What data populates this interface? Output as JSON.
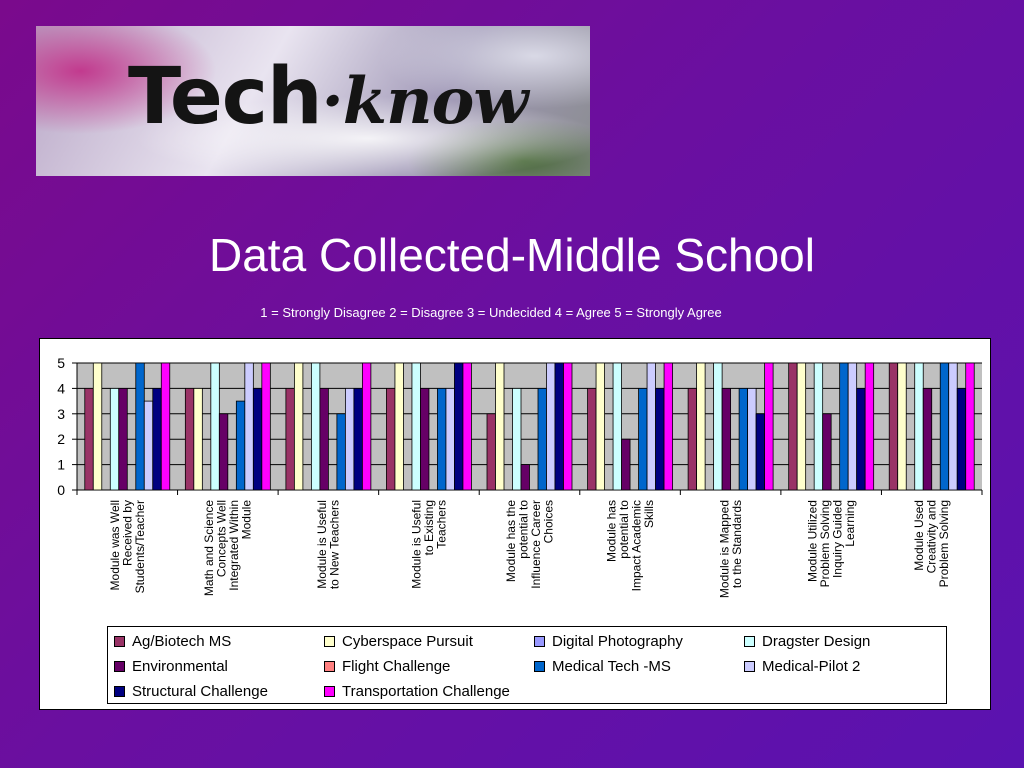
{
  "logo": {
    "text_part1": "Tech",
    "text_part2": "know"
  },
  "title": "Data Collected-Middle School",
  "scale_note": "1 = Strongly Disagree  2 = Disagree  3 = Undecided  4 = Agree  5 = Strongly Agree",
  "chart_data": {
    "type": "bar",
    "title": "",
    "xlabel": "",
    "ylabel": "",
    "ylim": [
      0,
      5
    ],
    "yticks": [
      "0",
      "1",
      "2",
      "3",
      "4",
      "5"
    ],
    "grid": true,
    "legend_position": "bottom",
    "categories": [
      [
        "Module was Well",
        "Received by",
        "Students/Teacher"
      ],
      [
        "Math and Science",
        "Concepts Well",
        "Integrated Within",
        "Module"
      ],
      [
        "Module is Useful",
        "to New Teachers"
      ],
      [
        "Module is Useful",
        "to Existing",
        "Teachers"
      ],
      [
        "Module has the",
        "potential to",
        "Influence Career",
        "Choices"
      ],
      [
        "Module has",
        "potential to",
        "Impact Academic",
        "Skills"
      ],
      [
        "Module is Mapped",
        "to the Standards"
      ],
      [
        "Module Utilized",
        "Problem Solving",
        "Inquiry Guided",
        "Learning"
      ],
      [
        "Module Used",
        "Creativity and",
        "Problem Solving"
      ]
    ],
    "series": [
      {
        "name": "Ag/Biotech MS",
        "color": "#993366",
        "values": [
          4,
          4,
          4,
          4,
          3,
          4,
          4,
          5,
          5
        ]
      },
      {
        "name": "Cyberspace Pursuit",
        "color": "#FFFFCC",
        "values": [
          5,
          4,
          5,
          5,
          5,
          5,
          5,
          5,
          5
        ]
      },
      {
        "name": "Digital Photography",
        "color": "#9999FF",
        "values": [
          0,
          0,
          0,
          0,
          0,
          0,
          0,
          0,
          0
        ]
      },
      {
        "name": "Dragster Design",
        "color": "#CCFFFF",
        "values": [
          4,
          5,
          5,
          5,
          4,
          5,
          5,
          5,
          5
        ]
      },
      {
        "name": "Environmental",
        "color": "#660066",
        "values": [
          4,
          3,
          4,
          4,
          1,
          2,
          4,
          3,
          4
        ]
      },
      {
        "name": "Flight Challenge",
        "color": "#FF8080",
        "values": [
          0,
          0,
          0,
          0,
          0,
          0,
          0,
          0,
          0
        ]
      },
      {
        "name": "Medical Tech -MS",
        "color": "#0066CC",
        "values": [
          5,
          3.5,
          3,
          4,
          4,
          4,
          4,
          5,
          5
        ]
      },
      {
        "name": "Medical-Pilot 2",
        "color": "#CCCCFF",
        "values": [
          3.5,
          5,
          4,
          4,
          5,
          5,
          4,
          5,
          5
        ]
      },
      {
        "name": "Structural Challenge",
        "color": "#000080",
        "values": [
          4,
          4,
          4,
          5,
          5,
          4,
          3,
          4,
          4
        ]
      },
      {
        "name": "Transportation Challenge",
        "color": "#FF00FF",
        "values": [
          5,
          5,
          5,
          5,
          5,
          5,
          5,
          5,
          5
        ]
      }
    ]
  }
}
